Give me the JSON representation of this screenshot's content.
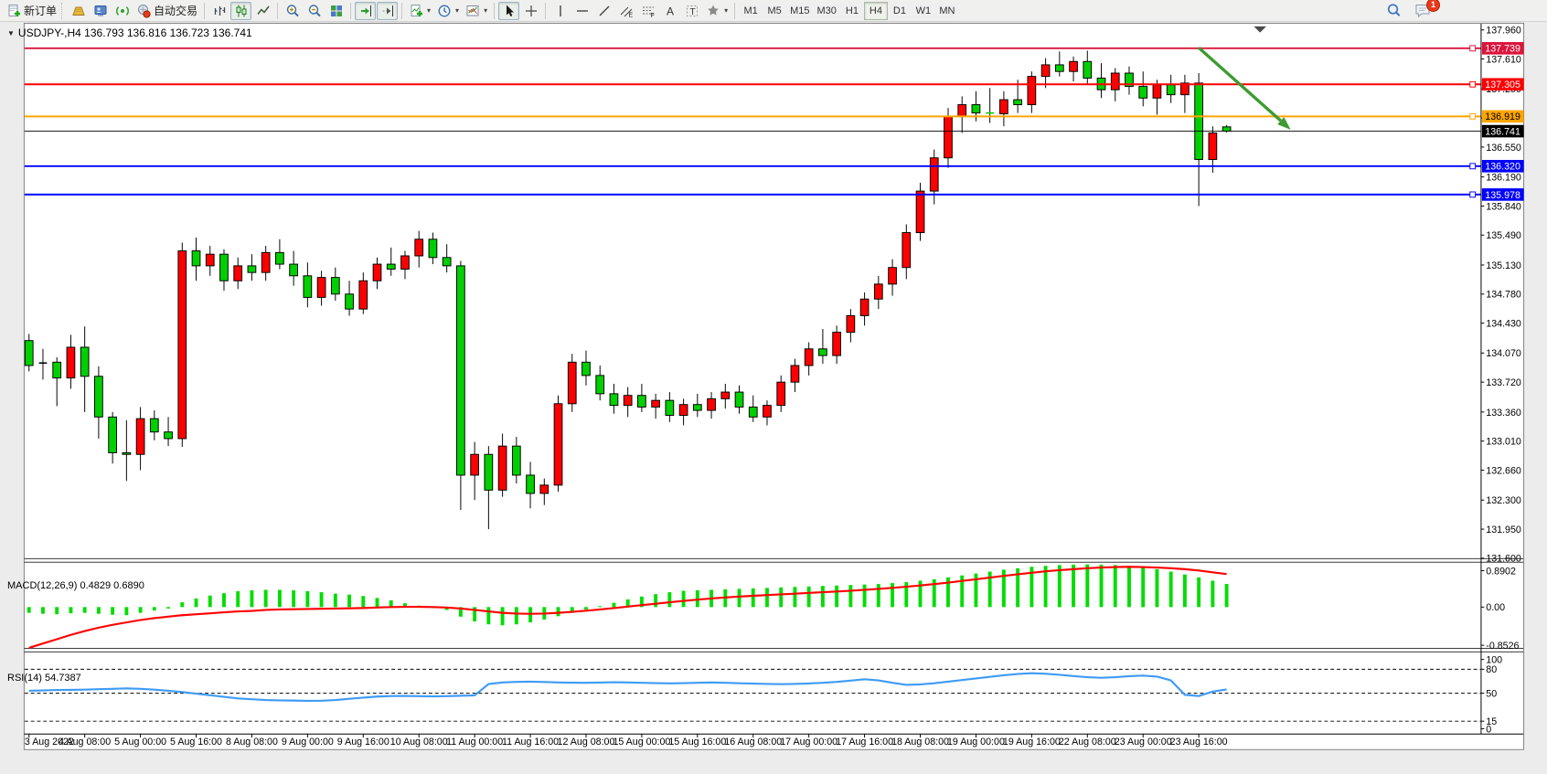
{
  "toolbar": {
    "new_order": "新订单",
    "autotrading": "自动交易",
    "timeframes": [
      "M1",
      "M5",
      "M15",
      "M30",
      "H1",
      "H4",
      "D1",
      "W1",
      "MN"
    ],
    "active_timeframe": "H4",
    "notification_badge": "1"
  },
  "chart": {
    "title": "USDJPY-,H4  136.793 136.816 136.723 136.741",
    "symbol": "USDJPY-",
    "period": "H4",
    "open": "136.793",
    "high": "136.816",
    "low": "136.723",
    "close": "136.741"
  },
  "indicators": {
    "macd": {
      "label": "MACD(12,26,9) 0.4829 0.6890",
      "params": "12,26,9",
      "value": 0.4829,
      "signal_value": 0.689
    },
    "rsi": {
      "label": "RSI(14) 54.7387",
      "period": 14,
      "value": 54.7387
    }
  },
  "chart_data": {
    "type": "candlestick",
    "title": "USDJPY- H4",
    "colors": {
      "bull": "#ff0000",
      "bear": "#00d000",
      "wick": "#000000",
      "macd_hist": "#00dd00",
      "macd_signal": "#ff0000",
      "rsi_line": "#3e9bf5",
      "arrow": "#3e9b32",
      "axis_text": "#000000",
      "background": "#ffffff"
    },
    "y_ticks": [
      "137.960",
      "137.610",
      "137.250",
      "136.900",
      "136.550",
      "136.190",
      "135.840",
      "135.490",
      "135.130",
      "134.780",
      "134.430",
      "134.070",
      "133.720",
      "133.360",
      "133.010",
      "132.660",
      "132.300",
      "131.950",
      "131.600"
    ],
    "x_labels": [
      "3 Aug 2022",
      "4 Aug 08:00",
      "5 Aug 00:00",
      "5 Aug 16:00",
      "8 Aug 08:00",
      "9 Aug 00:00",
      "9 Aug 16:00",
      "10 Aug 08:00",
      "11 Aug 00:00",
      "11 Aug 16:00",
      "12 Aug 08:00",
      "15 Aug 00:00",
      "15 Aug 16:00",
      "16 Aug 08:00",
      "17 Aug 00:00",
      "17 Aug 16:00",
      "18 Aug 08:00",
      "19 Aug 00:00",
      "19 Aug 16:00",
      "22 Aug 08:00",
      "23 Aug 00:00",
      "23 Aug 16:00"
    ],
    "levels": [
      {
        "price": 137.739,
        "label": "137.739",
        "color": "#dc143c",
        "text_color": "#ffffff"
      },
      {
        "price": 137.305,
        "label": "137.305",
        "color": "#fe0000",
        "text_color": "#ffffff"
      },
      {
        "price": 136.919,
        "label": "136.919",
        "color": "#ffa500",
        "text_color": "#000000"
      },
      {
        "price": 136.32,
        "label": "136.320",
        "color": "#0000ff",
        "text_color": "#ffffff"
      },
      {
        "price": 135.978,
        "label": "135.978",
        "color": "#0000ff",
        "text_color": "#ffffff"
      }
    ],
    "current_price": {
      "price": 136.741,
      "label": "136.741",
      "color": "#000000",
      "text_color": "#ffffff"
    },
    "arrow": {
      "from_bar": 84.0,
      "from_price": 137.745,
      "to_bar": 90.6,
      "to_price": 136.76
    },
    "shift_marker_bar": 88.4,
    "candles": [
      [
        134.22,
        134.3,
        133.85,
        133.92
      ],
      [
        133.95,
        134.12,
        133.75,
        133.95
      ],
      [
        133.96,
        134.02,
        133.43,
        133.77
      ],
      [
        133.77,
        134.29,
        133.64,
        134.14
      ],
      [
        134.14,
        134.39,
        133.36,
        133.79
      ],
      [
        133.79,
        133.91,
        133.04,
        133.3
      ],
      [
        133.3,
        133.36,
        132.74,
        132.87
      ],
      [
        132.87,
        133.26,
        132.53,
        132.85
      ],
      [
        132.85,
        133.42,
        132.66,
        133.28
      ],
      [
        133.28,
        133.38,
        133.02,
        133.12
      ],
      [
        133.12,
        133.3,
        132.95,
        133.04
      ],
      [
        133.04,
        135.4,
        132.94,
        135.3
      ],
      [
        135.3,
        135.46,
        134.94,
        135.12
      ],
      [
        135.12,
        135.36,
        135.0,
        135.26
      ],
      [
        135.26,
        135.32,
        134.82,
        134.94
      ],
      [
        134.94,
        135.22,
        134.84,
        135.12
      ],
      [
        135.12,
        135.26,
        134.94,
        135.04
      ],
      [
        135.04,
        135.36,
        134.94,
        135.28
      ],
      [
        135.28,
        135.44,
        135.08,
        135.14
      ],
      [
        135.14,
        135.3,
        134.88,
        135.0
      ],
      [
        135.0,
        135.16,
        134.62,
        134.74
      ],
      [
        134.74,
        135.06,
        134.64,
        134.98
      ],
      [
        134.98,
        135.1,
        134.7,
        134.78
      ],
      [
        134.78,
        134.94,
        134.52,
        134.6
      ],
      [
        134.6,
        135.04,
        134.54,
        134.94
      ],
      [
        134.94,
        135.22,
        134.84,
        135.14
      ],
      [
        135.14,
        135.34,
        135.0,
        135.08
      ],
      [
        135.08,
        135.3,
        134.96,
        135.24
      ],
      [
        135.24,
        135.54,
        135.1,
        135.44
      ],
      [
        135.44,
        135.52,
        135.14,
        135.22
      ],
      [
        135.22,
        135.38,
        135.04,
        135.12
      ],
      [
        135.12,
        135.18,
        132.18,
        132.6
      ],
      [
        132.6,
        133.0,
        132.3,
        132.85
      ],
      [
        132.85,
        132.95,
        131.95,
        132.42
      ],
      [
        132.42,
        133.1,
        132.34,
        132.95
      ],
      [
        132.95,
        133.06,
        132.5,
        132.6
      ],
      [
        132.6,
        132.76,
        132.2,
        132.38
      ],
      [
        132.38,
        132.56,
        132.24,
        132.48
      ],
      [
        132.48,
        133.56,
        132.4,
        133.46
      ],
      [
        133.46,
        134.06,
        133.36,
        133.96
      ],
      [
        133.96,
        134.1,
        133.68,
        133.8
      ],
      [
        133.8,
        133.92,
        133.5,
        133.58
      ],
      [
        133.58,
        133.7,
        133.34,
        133.44
      ],
      [
        133.44,
        133.66,
        133.3,
        133.56
      ],
      [
        133.56,
        133.7,
        133.36,
        133.42
      ],
      [
        133.42,
        133.58,
        133.28,
        133.5
      ],
      [
        133.5,
        133.6,
        133.24,
        133.32
      ],
      [
        133.32,
        133.52,
        133.2,
        133.45
      ],
      [
        133.45,
        133.58,
        133.3,
        133.38
      ],
      [
        133.38,
        133.6,
        133.28,
        133.52
      ],
      [
        133.52,
        133.7,
        133.4,
        133.6
      ],
      [
        133.6,
        133.68,
        133.34,
        133.42
      ],
      [
        133.42,
        133.56,
        133.24,
        133.3
      ],
      [
        133.3,
        133.5,
        133.2,
        133.44
      ],
      [
        133.44,
        133.8,
        133.36,
        133.72
      ],
      [
        133.72,
        134.0,
        133.6,
        133.92
      ],
      [
        133.92,
        134.2,
        133.8,
        134.12
      ],
      [
        134.12,
        134.36,
        133.94,
        134.04
      ],
      [
        134.04,
        134.4,
        133.94,
        134.32
      ],
      [
        134.32,
        134.6,
        134.2,
        134.52
      ],
      [
        134.52,
        134.8,
        134.4,
        134.72
      ],
      [
        134.72,
        135.0,
        134.6,
        134.9
      ],
      [
        134.9,
        135.2,
        134.76,
        135.1
      ],
      [
        135.1,
        135.62,
        134.96,
        135.52
      ],
      [
        135.52,
        136.12,
        135.42,
        136.02
      ],
      [
        136.02,
        136.52,
        135.86,
        136.42
      ],
      [
        136.42,
        137.02,
        136.3,
        136.92
      ],
      [
        136.92,
        137.16,
        136.72,
        137.06
      ],
      [
        137.06,
        137.22,
        136.86,
        136.96
      ],
      [
        136.96,
        137.26,
        136.84,
        136.95
      ],
      [
        136.95,
        137.22,
        136.8,
        137.12
      ],
      [
        137.12,
        137.36,
        136.96,
        137.06
      ],
      [
        137.06,
        137.46,
        136.96,
        137.4
      ],
      [
        137.4,
        137.62,
        137.26,
        137.54
      ],
      [
        137.54,
        137.7,
        137.4,
        137.46
      ],
      [
        137.46,
        137.64,
        137.34,
        137.58
      ],
      [
        137.58,
        137.71,
        137.3,
        137.38
      ],
      [
        137.38,
        137.56,
        137.14,
        137.24
      ],
      [
        137.24,
        137.5,
        137.1,
        137.44
      ],
      [
        137.44,
        137.52,
        137.18,
        137.28
      ],
      [
        137.28,
        137.46,
        137.04,
        137.14
      ],
      [
        137.14,
        137.36,
        136.94,
        137.3
      ],
      [
        137.3,
        137.42,
        137.08,
        137.18
      ],
      [
        137.18,
        137.42,
        136.96,
        137.32
      ],
      [
        137.32,
        137.44,
        135.84,
        136.4
      ],
      [
        136.4,
        136.8,
        136.24,
        136.72
      ],
      [
        136.793,
        136.816,
        136.723,
        136.741
      ]
    ],
    "macd": {
      "y_ticks": [
        {
          "v": 0.8902,
          "label": "0.8902"
        },
        {
          "v": 0,
          "label": "0.00"
        },
        {
          "v": -0.8526,
          "label": "-0.8526"
        }
      ],
      "hist": [
        -0.12,
        -0.14,
        -0.15,
        -0.13,
        -0.12,
        -0.14,
        -0.16,
        -0.17,
        -0.12,
        -0.07,
        -0.03,
        0.1,
        0.18,
        0.24,
        0.29,
        0.33,
        0.35,
        0.36,
        0.36,
        0.35,
        0.33,
        0.31,
        0.28,
        0.26,
        0.23,
        0.19,
        0.14,
        0.08,
        0.03,
        -0.02,
        -0.06,
        -0.2,
        -0.3,
        -0.36,
        -0.38,
        -0.36,
        -0.32,
        -0.26,
        -0.19,
        -0.12,
        -0.05,
        0.02,
        0.09,
        0.16,
        0.22,
        0.27,
        0.31,
        0.34,
        0.35,
        0.36,
        0.37,
        0.38,
        0.39,
        0.4,
        0.41,
        0.42,
        0.43,
        0.44,
        0.45,
        0.46,
        0.47,
        0.48,
        0.5,
        0.52,
        0.55,
        0.58,
        0.62,
        0.66,
        0.7,
        0.74,
        0.78,
        0.81,
        0.84,
        0.86,
        0.875,
        0.885,
        0.89,
        0.885,
        0.875,
        0.86,
        0.83,
        0.79,
        0.74,
        0.68,
        0.62,
        0.55,
        0.4829
      ],
      "signal": [
        -0.85,
        -0.76,
        -0.67,
        -0.58,
        -0.5,
        -0.43,
        -0.37,
        -0.32,
        -0.27,
        -0.23,
        -0.2,
        -0.17,
        -0.15,
        -0.13,
        -0.11,
        -0.09,
        -0.08,
        -0.06,
        -0.05,
        -0.045,
        -0.04,
        -0.035,
        -0.03,
        -0.025,
        -0.02,
        -0.01,
        0.0,
        0.005,
        0.005,
        0.0,
        -0.01,
        -0.03,
        -0.06,
        -0.09,
        -0.12,
        -0.135,
        -0.14,
        -0.135,
        -0.12,
        -0.1,
        -0.075,
        -0.05,
        -0.02,
        0.01,
        0.04,
        0.07,
        0.1,
        0.13,
        0.155,
        0.18,
        0.2,
        0.22,
        0.235,
        0.25,
        0.265,
        0.28,
        0.295,
        0.31,
        0.325,
        0.34,
        0.36,
        0.38,
        0.4,
        0.425,
        0.45,
        0.48,
        0.51,
        0.545,
        0.58,
        0.615,
        0.65,
        0.685,
        0.715,
        0.745,
        0.77,
        0.79,
        0.81,
        0.825,
        0.835,
        0.84,
        0.835,
        0.825,
        0.81,
        0.79,
        0.762,
        0.725,
        0.689
      ]
    },
    "rsi": {
      "y_ticks": [
        {
          "v": 100,
          "label": "100"
        },
        {
          "v": 80,
          "label": "80"
        },
        {
          "v": 50,
          "label": "50"
        },
        {
          "v": 15,
          "label": "15"
        },
        {
          "v": 0,
          "label": "0"
        }
      ],
      "levels": [
        80,
        50,
        15
      ],
      "values": [
        53,
        53.5,
        54,
        54.2,
        54.5,
        55,
        55.5,
        56,
        55.5,
        54.5,
        53,
        51.5,
        49.5,
        47.5,
        45.5,
        43.5,
        42.5,
        41.5,
        41,
        40.8,
        40.5,
        40.6,
        41.5,
        43,
        44.5,
        45.8,
        46.4,
        46.6,
        46.3,
        46,
        46.3,
        46.8,
        47.3,
        61.5,
        63.5,
        64.2,
        64.5,
        64,
        63.5,
        63.2,
        63,
        63.3,
        63.8,
        63.5,
        63,
        62.6,
        62.3,
        62.6,
        63,
        63.4,
        63,
        62.5,
        62,
        61.6,
        61.3,
        61.6,
        62.2,
        63,
        64.2,
        65.8,
        67.5,
        66,
        63,
        60.5,
        61,
        62.5,
        64.5,
        66.5,
        68.5,
        70.5,
        72.5,
        74,
        75,
        74.3,
        73,
        71.5,
        70,
        69.3,
        70,
        71.3,
        72,
        70.8,
        66,
        48,
        46.5,
        52,
        54.7387
      ]
    }
  }
}
